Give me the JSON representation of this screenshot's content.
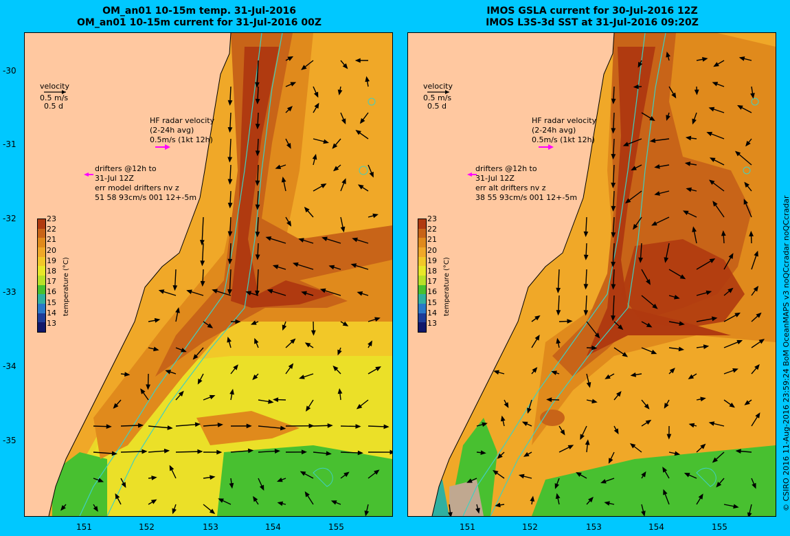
{
  "left": {
    "title_line1": "OM_an01 10-15m temp. 31-Jul-2016",
    "title_line2": "OM_an01 10-15m current for 31-Jul-2016 00Z",
    "velocity_label": "velocity",
    "velocity_speed": "0.5 m/s",
    "velocity_time": "0.5 d",
    "hf_line1": "HF radar velocity",
    "hf_line2": "(2-24h avg)",
    "hf_line3": "0.5m/s (1kt 12h)",
    "drift_line1": "drifters @12h to",
    "drift_line2": "31-Jul 12Z",
    "drift_line3": "err model drifters nv z",
    "drift_line4": "51 58 93cm/s 001 12+-5m"
  },
  "right": {
    "title_line1": "IMOS GSLA current for 30-Jul-2016 12Z",
    "title_line2": "IMOS L3S-3d SST at 31-Jul-2016 09:20Z",
    "velocity_label": "velocity",
    "velocity_speed": "0.5 m/s",
    "velocity_time": "0.5 d",
    "hf_line1": "HF radar velocity",
    "hf_line2": "(2-24h avg)",
    "hf_line3": "0.5m/s (1kt 12h)",
    "drift_line1": "drifters @12h to",
    "drift_line2": "31-Jul 12Z",
    "drift_line3": "err alt drifters nv z",
    "drift_line4": "38 55 93cm/s 001 12+-5m"
  },
  "colorbar": {
    "title": "temperature (°C)",
    "labels": [
      "23",
      "22",
      "21",
      "20",
      "19",
      "18",
      "17",
      "16",
      "15",
      "14",
      "13"
    ],
    "colors": [
      "#b03a10",
      "#c86418",
      "#e08a1c",
      "#f0a828",
      "#f2c828",
      "#e8e828",
      "#b8e028",
      "#48c030",
      "#30b0a0",
      "#2878c8",
      "#1c3c98",
      "#10186a"
    ]
  },
  "axes": {
    "y_ticks": [
      "-30",
      "-31",
      "-32",
      "-33",
      "-34",
      "-35"
    ],
    "x_ticks": [
      "151",
      "152",
      "153",
      "154",
      "155"
    ]
  },
  "credit": "© CSIRO 2016  11-Aug-2016 23:59:24 BoM OceanMAPS v3 noQCcradar noQCcradar",
  "colors": {
    "background": "#00c8ff",
    "land": "#ffc8a0",
    "warm_core": "#b03a10",
    "warm": "#e08a1c",
    "mid": "#f0a828",
    "cool": "#e8e828",
    "green": "#48c030",
    "isobath": "#40d0c0",
    "drifter": "#ff00ff"
  }
}
